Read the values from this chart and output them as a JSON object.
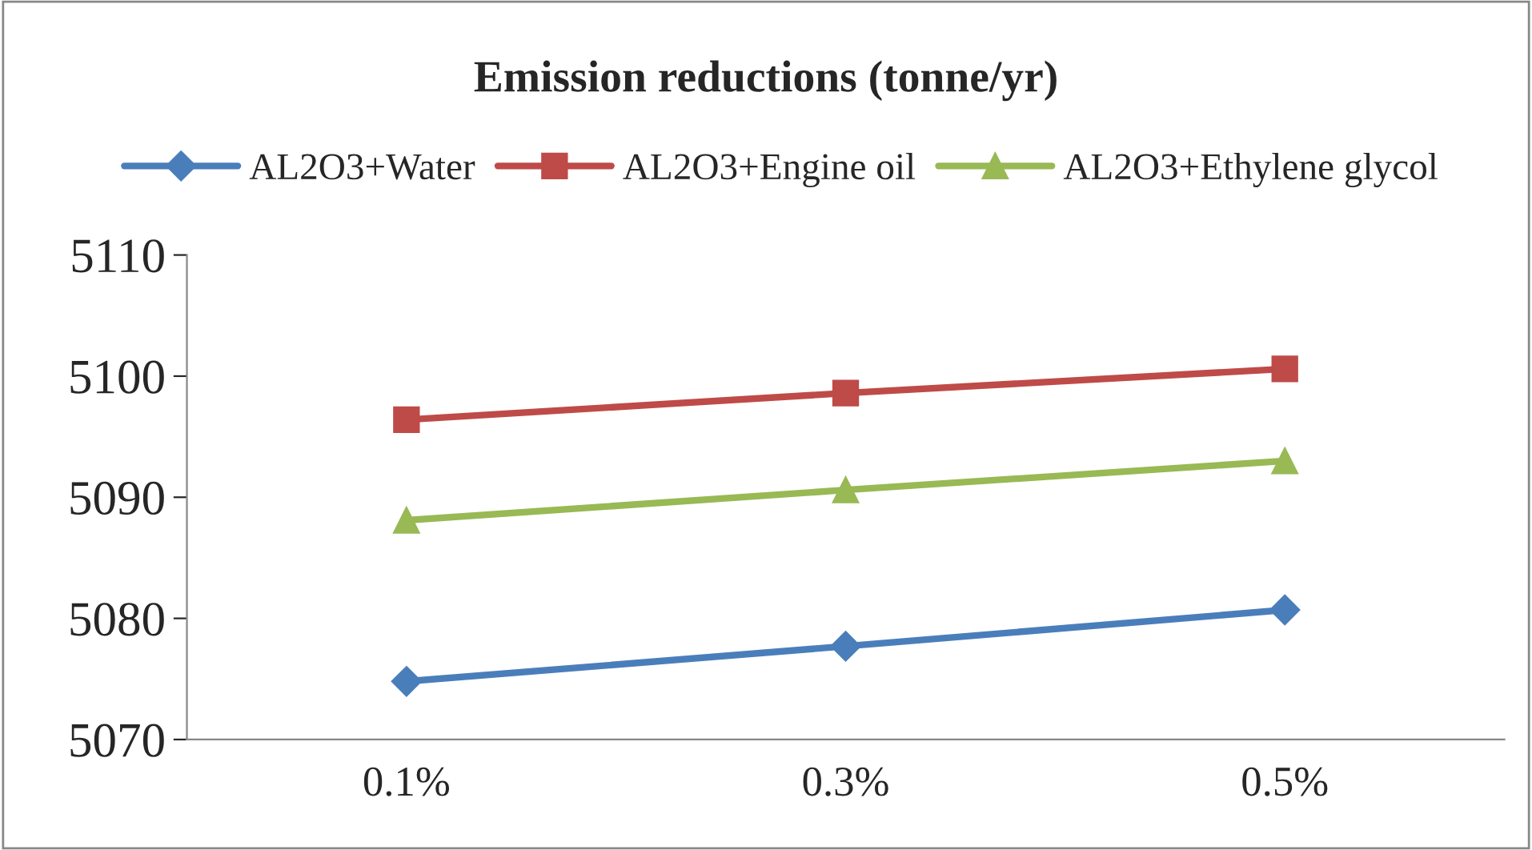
{
  "chart_data": {
    "type": "line",
    "title": "Emission reductions (tonne/yr)",
    "categories": [
      "0.1%",
      "0.3%",
      "0.5%"
    ],
    "series": [
      {
        "name": "AL2O3+Water",
        "color": "#4a7ebb",
        "values": [
          5074.8,
          5077.7,
          5080.7
        ],
        "marker": "diamond"
      },
      {
        "name": "AL2O3+Engine oil",
        "color": "#be4b48",
        "values": [
          5096.4,
          5098.6,
          5100.6
        ],
        "marker": "square"
      },
      {
        "name": "AL2O3+Ethylene glycol",
        "color": "#98b954",
        "values": [
          5088.1,
          5090.6,
          5093.0
        ],
        "marker": "triangle"
      }
    ],
    "ylim": [
      5070,
      5110
    ],
    "yticks": [
      5070,
      5080,
      5090,
      5100,
      5110
    ],
    "grid": false,
    "legend": "top",
    "line_style": "solid"
  }
}
